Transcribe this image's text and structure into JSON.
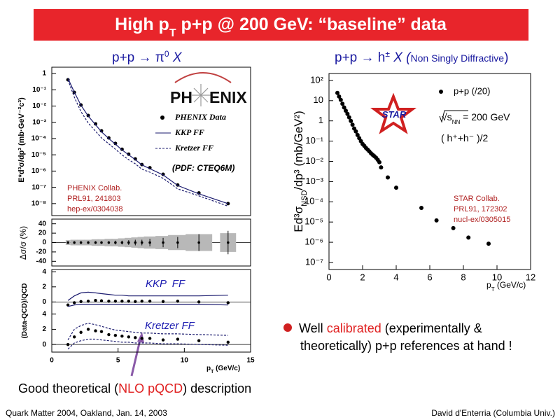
{
  "slide": {
    "title": [
      "High p",
      "T",
      " p+p @ 200 GeV: “baseline” data"
    ],
    "left_heading": [
      "p+p → π",
      "0",
      " X"
    ],
    "right_heading": [
      "p+p → h",
      "±",
      " X (",
      "Non Singly Diffractive",
      ")"
    ],
    "phenix_logo": [
      "PH",
      "ENIX"
    ],
    "pdf_note": "(PDF: CTEQ6M)",
    "phenix_ref": [
      "PHENIX Collab.",
      "PRL91, 241803",
      "hep-ex/0304038"
    ],
    "star_logo": "STAR",
    "star_energy": [
      "√s",
      "NN",
      " = 200 GeV"
    ],
    "star_species": "( h⁺+h⁻ )/2",
    "star_ref": [
      "STAR Collab.",
      "PRL91, 172302",
      "nucl-ex/0305015"
    ],
    "bullet": [
      "Well ",
      "calibrated",
      " (experimentally &",
      "theoretically) p+p references at hand !"
    ],
    "bottom_note": [
      "Good theoretical (",
      "NLO pQCD",
      ") description"
    ],
    "footer_left": "Quark Matter 2004, Oakland, Jan. 14, 2003",
    "footer_right": "David d'Enterria (Columbia Univ.)"
  },
  "chart_data": [
    {
      "type": "scatter",
      "ylog": true,
      "xlim": [
        0,
        15
      ],
      "ylim": [
        3e-09,
        2
      ],
      "yticks": [
        1,
        {
          "value": 0.1,
          "label": "10⁻¹"
        },
        {
          "value": 0.01,
          "label": "10⁻²"
        },
        {
          "value": 0.001,
          "label": "10⁻³"
        },
        {
          "value": 0.0001,
          "label": "10⁻⁴"
        },
        {
          "value": 1e-05,
          "label": "10⁻⁵"
        },
        {
          "value": 1e-06,
          "label": "10⁻⁶"
        },
        {
          "value": 1e-07,
          "label": "10⁻⁷"
        },
        {
          "value": 1e-08,
          "label": "10⁻⁸"
        }
      ],
      "ylabel": "E*d³σ/dp³ (mb·GeV⁻²c³)",
      "legend": "right",
      "series": [
        {
          "name": "PHENIX Data",
          "style": "points",
          "color": "#000000",
          "x": [
            1.22,
            1.7,
            2.2,
            2.75,
            3.3,
            3.75,
            4.3,
            4.8,
            5.3,
            5.8,
            6.3,
            6.8,
            7.4,
            8.4,
            9.5,
            11.1,
            13.3
          ],
          "values": [
            0.41,
            0.069,
            0.0115,
            0.0026,
            0.0008,
            0.0003,
            0.00011,
            5e-05,
            2.2e-05,
            1.1e-05,
            5.6e-06,
            2.5e-06,
            1.6e-06,
            6.3e-07,
            1.4e-07,
            4.5e-08,
            1e-08
          ]
        },
        {
          "name": "KKP FF",
          "style": "solid",
          "color": "#1a1a6e",
          "x": [
            1.22,
            1.7,
            2.2,
            2.75,
            3.3,
            3.75,
            4.3,
            4.8,
            5.3,
            5.8,
            6.3,
            6.8,
            7.4,
            8.4,
            9.5,
            11.1,
            13.3
          ],
          "values": [
            0.5,
            0.07,
            0.011,
            0.0024,
            0.0007,
            0.00026,
            0.0001,
            4.5e-05,
            2e-05,
            1e-05,
            5e-06,
            2.4e-06,
            1.4e-06,
            5.8e-07,
            1.3e-07,
            4e-08,
            1e-08
          ]
        },
        {
          "name": "Kretzer FF",
          "style": "dashed",
          "color": "#1a1a6e",
          "x": [
            1.22,
            1.7,
            2.2,
            2.75,
            3.3,
            3.75,
            4.3,
            4.8,
            5.3,
            5.8,
            6.3,
            6.8,
            7.4,
            8.4,
            9.5,
            11.1,
            13.3
          ],
          "values": [
            0.4,
            0.035,
            0.0045,
            0.0009,
            0.00028,
            0.00011,
            4.7e-05,
            2.2e-05,
            1e-05,
            5e-06,
            2.8e-06,
            1.3e-06,
            8.5e-07,
            3.6e-07,
            8e-08,
            3e-08,
            7e-09
          ]
        }
      ]
    },
    {
      "type": "scatter",
      "xlim": [
        0,
        15
      ],
      "ylim": [
        -50,
        50
      ],
      "yticks": [
        40,
        20,
        0,
        -20,
        -40
      ],
      "ylabel": "Δσ/σ (%)",
      "zero_line": true,
      "series": [
        {
          "style": "points",
          "color": "#000000",
          "band_color": "#b8b8b8",
          "x": [
            1.22,
            1.7,
            2.2,
            2.75,
            3.3,
            3.75,
            4.3,
            4.8,
            5.3,
            5.8,
            6.3,
            6.8,
            7.4,
            8.4,
            9.5,
            11.1,
            13.3
          ],
          "values": [
            0,
            0,
            0,
            0,
            0,
            0,
            0,
            0,
            0,
            0,
            0,
            0,
            0,
            0,
            0,
            0,
            0
          ],
          "errors": [
            3,
            3,
            3,
            3,
            3,
            3,
            3,
            4,
            4,
            5,
            6,
            6,
            8,
            10,
            12,
            18,
            25
          ],
          "band": [
            5,
            6,
            6,
            6,
            7,
            7,
            8,
            8,
            9,
            10,
            11,
            12,
            13,
            14,
            16,
            18,
            20
          ]
        }
      ]
    },
    {
      "type": "scatter",
      "label": "KKP  FF",
      "xlim": [
        0,
        15
      ],
      "ylim": [
        -0.8,
        4.3
      ],
      "yticks": [
        0,
        2,
        4
      ],
      "zero_line": true,
      "series": [
        {
          "style": "points",
          "color": "#000000",
          "x": [
            1.22,
            1.7,
            2.2,
            2.75,
            3.3,
            3.75,
            4.3,
            4.8,
            5.3,
            5.8,
            6.3,
            6.8,
            7.4,
            8.4,
            9.5,
            11.1,
            13.3
          ],
          "values": [
            -0.4,
            -0.1,
            0.05,
            0.1,
            0.2,
            0.15,
            0.1,
            0.1,
            0.1,
            0.1,
            0.05,
            0.1,
            0.1,
            0.05,
            0.1,
            0,
            -0.1
          ]
        },
        {
          "style": "solid",
          "color": "#1a1a6e",
          "x": [
            1.22,
            1.7,
            2.2,
            2.75,
            3.3,
            3.75,
            4.3,
            4.8,
            5.3,
            5.8,
            6.3,
            6.8,
            7.4,
            8.4,
            9.5,
            11.1,
            13.3
          ],
          "values": [
            0.2,
            0.8,
            1.2,
            1.3,
            1.2,
            1.1,
            1,
            0.9,
            0.9,
            0.8,
            0.8,
            0.8,
            0.8,
            0.8,
            0.8,
            0.8,
            0.9
          ]
        },
        {
          "style": "solid",
          "color": "#1a1a6e",
          "x": [
            1.22,
            1.7,
            2.2,
            2.75,
            3.3,
            3.75,
            4.3,
            4.8,
            5.3,
            5.8,
            6.3,
            6.8,
            7.4,
            8.4,
            9.5,
            11.1,
            13.3
          ],
          "values": [
            -0.6,
            -0.4,
            -0.3,
            -0.3,
            -0.3,
            -0.3,
            -0.3,
            -0.3,
            -0.3,
            -0.3,
            -0.3,
            -0.3,
            -0.3,
            -0.3,
            -0.3,
            -0.3,
            -0.4
          ]
        }
      ]
    },
    {
      "type": "scatter",
      "label": "Kretzer FF",
      "xlim": [
        0,
        15
      ],
      "ylim": [
        -1,
        4.8
      ],
      "yticks": [
        0,
        2,
        4
      ],
      "xticks": [
        0,
        5,
        10,
        15
      ],
      "xlabel": [
        "p",
        "T",
        " (GeV/c)"
      ],
      "ylabel": "(Data-QCD)/QCD",
      "zero_line": true,
      "series": [
        {
          "style": "points",
          "color": "#000000",
          "x": [
            1.22,
            1.7,
            2.2,
            2.75,
            3.3,
            3.75,
            4.3,
            4.8,
            5.3,
            5.8,
            6.3,
            6.8,
            7.4,
            8.4,
            9.5,
            11.1,
            13.3
          ],
          "values": [
            0,
            1,
            1.6,
            2,
            1.8,
            1.7,
            1.3,
            1.2,
            1.1,
            1,
            0.9,
            0.8,
            0.8,
            0.6,
            0.7,
            0.5,
            0.3
          ]
        },
        {
          "style": "dashed",
          "color": "#1a1a6e",
          "x": [
            1.22,
            1.7,
            2.2,
            2.75,
            3.3,
            3.75,
            4.3,
            4.8,
            5.3,
            5.8,
            6.3,
            6.8,
            7.4,
            8.4,
            9.5,
            11.1,
            13.3
          ],
          "values": [
            0.6,
            2,
            2.5,
            2.8,
            2.6,
            2.4,
            2.1,
            1.9,
            1.8,
            1.7,
            1.6,
            1.5,
            1.5,
            1.4,
            1.4,
            1.3,
            1.2
          ]
        },
        {
          "style": "dashed",
          "color": "#1a1a6e",
          "x": [
            1.22,
            1.7,
            2.2,
            2.75,
            3.3,
            3.75,
            4.3,
            4.8,
            5.3,
            5.8,
            6.3,
            6.8,
            7.4,
            8.4,
            9.5,
            11.1,
            13.3
          ],
          "values": [
            -0.6,
            0.2,
            0.5,
            0.7,
            0.7,
            0.6,
            0.5,
            0.4,
            0.3,
            0.3,
            0.2,
            0.2,
            0.2,
            0.1,
            0.1,
            0,
            -0.1
          ]
        }
      ]
    },
    {
      "type": "scatter",
      "ylog": true,
      "xlim": [
        0,
        12
      ],
      "ylim": [
        4.5e-08,
        220
      ],
      "xticks": [
        0,
        2,
        4,
        6,
        8,
        10,
        12
      ],
      "yticks": [
        {
          "value": 100,
          "label": "10²"
        },
        10,
        1,
        {
          "value": 0.1,
          "label": "10⁻¹"
        },
        {
          "value": 0.01,
          "label": "10⁻²"
        },
        {
          "value": 0.001,
          "label": "10⁻³"
        },
        {
          "value": 0.0001,
          "label": "10⁻⁴"
        },
        {
          "value": 1e-05,
          "label": "10⁻⁵"
        },
        {
          "value": 1e-06,
          "label": "10⁻⁶"
        },
        {
          "value": 1e-07,
          "label": "10⁻⁷"
        }
      ],
      "xlabel": [
        "p",
        "T",
        " (GeV/c)"
      ],
      "ylabel": [
        "Ed³σ",
        "NSD",
        "/dp³ (mb/GeV²)"
      ],
      "legend": "upper right",
      "series": [
        {
          "name": "p+p (/20)",
          "style": "points",
          "color": "#000000",
          "x": [
            0.5,
            0.6,
            0.7,
            0.8,
            0.9,
            1,
            1.1,
            1.2,
            1.3,
            1.4,
            1.5,
            1.6,
            1.7,
            1.8,
            1.9,
            2,
            2.1,
            2.2,
            2.3,
            2.4,
            2.5,
            2.6,
            2.7,
            2.8,
            2.9,
            3,
            3.1,
            3.5,
            4,
            5.5,
            6.4,
            7.4,
            8.3,
            9.5
          ],
          "values": [
            24,
            16,
            11,
            7,
            4.6,
            3.2,
            2.2,
            1.5,
            1,
            0.65,
            0.42,
            0.3,
            0.2,
            0.14,
            0.1,
            0.072,
            0.058,
            0.046,
            0.038,
            0.031,
            0.025,
            0.021,
            0.018,
            0.015,
            0.012,
            0.009,
            0.005,
            0.0016,
            0.0005,
            5e-05,
            1.2e-05,
            5e-06,
            1.7e-06,
            8.5e-07
          ]
        }
      ]
    }
  ]
}
